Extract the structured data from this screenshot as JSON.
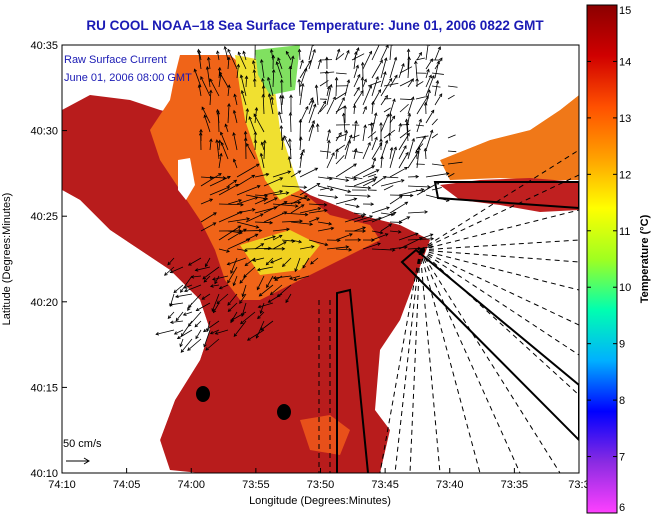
{
  "title": "RU COOL  NOAA–18  Sea Surface Temperature:  June 01, 2006 0822 GMT",
  "legend": {
    "line1": "Raw Surface Current",
    "line2": "June 01, 2006 08:00 GMT"
  },
  "scale_label": "50 cm/s",
  "axes": {
    "xlabel": "Longitude (Degrees:Minutes)",
    "ylabel": "Latitude (Degrees:Minutes)",
    "xticks": [
      "74:10",
      "74:05",
      "74:00",
      "73:55",
      "73:50",
      "73:45",
      "73:40",
      "73:35",
      "73:3"
    ],
    "yticks": [
      "40:35",
      "40:30",
      "40:25",
      "40:20",
      "40:15",
      "40:10"
    ]
  },
  "colorbar": {
    "label": "Temperature (°C)",
    "min": 6,
    "max": 15,
    "ticks": [
      "15",
      "14",
      "13",
      "12",
      "11",
      "10",
      "9",
      "8",
      "7",
      "6"
    ],
    "colors": [
      "#ff40ff",
      "#8a2be2",
      "#0000ff",
      "#00b0ff",
      "#00ffb0",
      "#a0ff20",
      "#ffff00",
      "#ffa000",
      "#ff5000",
      "#d00000",
      "#8b0000"
    ]
  },
  "colors": {
    "land": "#ffffff",
    "warm": "#b81c1c",
    "orange": "#f06418",
    "yellow": "#f0e030",
    "green": "#80e060",
    "title_blue": "#1a1ab4"
  }
}
